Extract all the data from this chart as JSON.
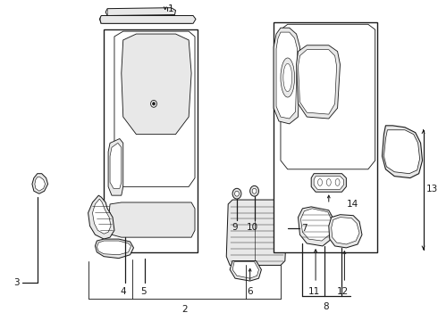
{
  "bg_color": "#ffffff",
  "line_color": "#1a1a1a",
  "fig_width": 4.9,
  "fig_height": 3.6,
  "dpi": 100,
  "lw": 0.9,
  "label_fs": 7.5
}
